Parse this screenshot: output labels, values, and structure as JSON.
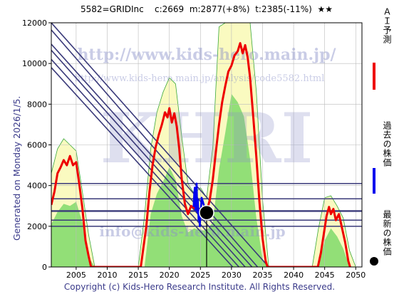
{
  "header": {
    "ticker": "5582=GRIDInc",
    "current": "c:2669",
    "mean": "m:2877(+8%)",
    "target": "t:2385(-11%)",
    "stars": "★★"
  },
  "side_text": "Generated on Monday 2026/1/5.",
  "footer": "Copyright (c) Kids-Hero Research Institute. All Rights Reserved.",
  "watermarks": {
    "url": "http://www.kids-hero.main.jp/",
    "analysis_url": "http://www.kids-hero.main.jp/analysis/code5582.html",
    "logo": "KHRI",
    "email": "info@kids-hero.main.jp"
  },
  "legend": {
    "ai_forecast": "ＡＩ予測",
    "past_price": "過去の株価",
    "latest_price": "最新の株価"
  },
  "colors": {
    "ai_forecast": "#ee0000",
    "past_price": "#0000ee",
    "latest_price": "#000000",
    "band_green": "#7fd96a",
    "band_yellow": "#fafac0",
    "trend_lines": "#3a3a7a",
    "grid": "#bbbbbb"
  },
  "chart_data": {
    "type": "line",
    "xlim": [
      2001,
      2051
    ],
    "ylim": [
      0,
      12000
    ],
    "x_ticks": [
      2005,
      2010,
      2015,
      2020,
      2025,
      2030,
      2035,
      2040,
      2045,
      2050
    ],
    "y_ticks": [
      0,
      2000,
      4000,
      6000,
      8000,
      10000,
      12000
    ],
    "grid": true,
    "series": [
      {
        "name": "ＡＩ予測",
        "points": [
          [
            2001.0,
            3050
          ],
          [
            2001.5,
            3700
          ],
          [
            2002.0,
            4600
          ],
          [
            2002.5,
            4900
          ],
          [
            2003.0,
            5250
          ],
          [
            2003.5,
            5000
          ],
          [
            2004.0,
            5450
          ],
          [
            2004.5,
            5000
          ],
          [
            2005.0,
            5150
          ],
          [
            2005.5,
            4100
          ],
          [
            2006.0,
            2900
          ],
          [
            2006.5,
            1300
          ],
          [
            2007.0,
            550
          ],
          [
            2007.4,
            0
          ],
          [
            2015.4,
            0
          ],
          [
            2015.8,
            900
          ],
          [
            2016.3,
            2000
          ],
          [
            2016.8,
            3700
          ],
          [
            2017.3,
            5000
          ],
          [
            2017.8,
            5900
          ],
          [
            2018.3,
            6500
          ],
          [
            2018.8,
            7000
          ],
          [
            2019.3,
            7600
          ],
          [
            2019.7,
            7350
          ],
          [
            2020.0,
            7800
          ],
          [
            2020.4,
            7100
          ],
          [
            2020.8,
            7550
          ],
          [
            2021.2,
            6900
          ],
          [
            2021.6,
            5800
          ],
          [
            2022.0,
            4300
          ],
          [
            2022.5,
            3100
          ],
          [
            2023.0,
            2600
          ],
          [
            2023.5,
            3000
          ],
          [
            2024.0,
            2900
          ],
          [
            2024.5,
            2800
          ],
          [
            2025.0,
            2700
          ],
          [
            2025.5,
            2650
          ],
          [
            2026.0,
            2700
          ],
          [
            2026.5,
            3300
          ],
          [
            2027.0,
            4300
          ],
          [
            2027.5,
            5700
          ],
          [
            2028.0,
            7000
          ],
          [
            2028.5,
            8100
          ],
          [
            2029.0,
            8900
          ],
          [
            2029.5,
            9600
          ],
          [
            2030.0,
            9900
          ],
          [
            2030.5,
            10400
          ],
          [
            2031.0,
            10600
          ],
          [
            2031.4,
            11000
          ],
          [
            2031.8,
            10500
          ],
          [
            2032.2,
            10900
          ],
          [
            2032.6,
            10300
          ],
          [
            2033.0,
            9300
          ],
          [
            2033.5,
            7400
          ],
          [
            2034.0,
            5400
          ],
          [
            2034.5,
            3200
          ],
          [
            2035.0,
            1400
          ],
          [
            2035.5,
            300
          ],
          [
            2035.8,
            0
          ],
          [
            2043.9,
            0
          ],
          [
            2044.4,
            700
          ],
          [
            2044.9,
            1700
          ],
          [
            2045.3,
            2500
          ],
          [
            2045.7,
            2950
          ],
          [
            2046.0,
            2600
          ],
          [
            2046.4,
            2850
          ],
          [
            2046.8,
            2300
          ],
          [
            2047.3,
            2600
          ],
          [
            2047.8,
            1900
          ],
          [
            2048.3,
            1200
          ],
          [
            2048.8,
            300
          ],
          [
            2049.1,
            0
          ]
        ]
      },
      {
        "name": "過去の株価",
        "points": [
          [
            2023.9,
            2950
          ],
          [
            2024.0,
            3600
          ],
          [
            2024.1,
            3900
          ],
          [
            2024.2,
            2800
          ],
          [
            2024.3,
            3500
          ],
          [
            2024.4,
            4100
          ],
          [
            2024.5,
            2700
          ],
          [
            2024.6,
            3300
          ],
          [
            2024.7,
            2300
          ],
          [
            2024.8,
            2600
          ],
          [
            2024.9,
            2000
          ],
          [
            2025.0,
            2500
          ],
          [
            2025.2,
            3400
          ],
          [
            2025.4,
            3200
          ],
          [
            2025.6,
            3000
          ],
          [
            2025.8,
            2900
          ],
          [
            2026.0,
            2669
          ]
        ]
      }
    ],
    "latest_point": {
      "x": 2026.0,
      "y": 2669
    },
    "band_upper": [
      [
        2001,
        4600
      ],
      [
        2002,
        5800
      ],
      [
        2003,
        6300
      ],
      [
        2004,
        6000
      ],
      [
        2005,
        5700
      ],
      [
        2006,
        3700
      ],
      [
        2007,
        1600
      ],
      [
        2008,
        0
      ],
      [
        2015,
        0
      ],
      [
        2016,
        2500
      ],
      [
        2017,
        5800
      ],
      [
        2018,
        7600
      ],
      [
        2019,
        8600
      ],
      [
        2020,
        9300
      ],
      [
        2021,
        9000
      ],
      [
        2022,
        6400
      ],
      [
        2023,
        4100
      ],
      [
        2024,
        3600
      ],
      [
        2025,
        3900
      ],
      [
        2026,
        3400
      ],
      [
        2027,
        5900
      ],
      [
        2028,
        11800
      ],
      [
        2029,
        12000
      ],
      [
        2033,
        12000
      ],
      [
        2034,
        8600
      ],
      [
        2035,
        3300
      ],
      [
        2036,
        0
      ],
      [
        2043,
        0
      ],
      [
        2044,
        1900
      ],
      [
        2045,
        3400
      ],
      [
        2046,
        3500
      ],
      [
        2047,
        3000
      ],
      [
        2048,
        2400
      ],
      [
        2049,
        800
      ],
      [
        2050,
        0
      ]
    ],
    "band_lower": [
      [
        2001,
        2100
      ],
      [
        2002,
        2700
      ],
      [
        2003,
        3100
      ],
      [
        2004,
        3000
      ],
      [
        2005,
        3200
      ],
      [
        2006,
        2200
      ],
      [
        2007,
        500
      ],
      [
        2008,
        0
      ],
      [
        2016,
        0
      ],
      [
        2017,
        2600
      ],
      [
        2018,
        3600
      ],
      [
        2019,
        4200
      ],
      [
        2020,
        4900
      ],
      [
        2021,
        4300
      ],
      [
        2022,
        2500
      ],
      [
        2023,
        1700
      ],
      [
        2024,
        1900
      ],
      [
        2025,
        1800
      ],
      [
        2026,
        1800
      ],
      [
        2027,
        2200
      ],
      [
        2028,
        4800
      ],
      [
        2029,
        6600
      ],
      [
        2030,
        8500
      ],
      [
        2031,
        8100
      ],
      [
        2032,
        7400
      ],
      [
        2033,
        5300
      ],
      [
        2034,
        2400
      ],
      [
        2035,
        400
      ],
      [
        2036,
        0
      ],
      [
        2044,
        0
      ],
      [
        2045,
        1300
      ],
      [
        2046,
        1900
      ],
      [
        2047,
        1500
      ],
      [
        2048,
        900
      ],
      [
        2049,
        0
      ]
    ],
    "trend_lines": [
      {
        "from": [
          2001,
          12000
        ],
        "to": [
          2036.0,
          0
        ]
      },
      {
        "from": [
          2001,
          11650
        ],
        "to": [
          2034.2,
          0
        ]
      },
      {
        "from": [
          2001,
          10950
        ],
        "to": [
          2033.3,
          0
        ]
      },
      {
        "from": [
          2001,
          10650
        ],
        "to": [
          2032.2,
          0
        ]
      },
      {
        "from": [
          2001,
          10200
        ],
        "to": [
          2031.2,
          0
        ]
      },
      {
        "from": [
          2001,
          9800
        ],
        "to": [
          2030.2,
          0
        ]
      }
    ],
    "horizontal_levels": [
      4100,
      3350,
      2750,
      2300,
      2000
    ]
  }
}
